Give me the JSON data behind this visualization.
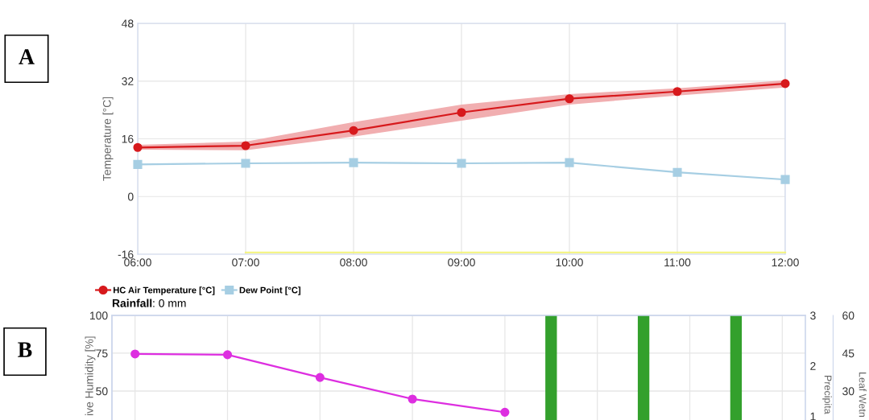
{
  "chart_data": [
    {
      "type": "line",
      "ylabel": "Temperature [°C]",
      "annotations": [
        "A"
      ],
      "x": [
        6,
        7,
        8,
        9,
        10,
        11,
        12
      ],
      "xlim": [
        6,
        12
      ],
      "xticks": [
        {
          "value": 6,
          "label": "06:00"
        },
        {
          "value": 7,
          "label": "07:00"
        },
        {
          "value": 8,
          "label": "08:00"
        },
        {
          "value": 9,
          "label": "09:00"
        },
        {
          "value": 10,
          "label": "10:00"
        },
        {
          "value": 11,
          "label": "11:00"
        },
        {
          "value": 12,
          "label": "12:00"
        }
      ],
      "ylim": [
        -16,
        48
      ],
      "yticks": [
        -16,
        0,
        16,
        32,
        48
      ],
      "grid": true,
      "legend": "bottom left",
      "series": [
        {
          "name": "HC Air Temperature [°C]",
          "color": "#d7191c",
          "marker": "circle",
          "values": [
            13.6,
            14.1,
            18.3,
            23.3,
            27.1,
            29.1,
            31.3
          ],
          "lower": [
            13.0,
            12.8,
            16.6,
            21.0,
            25.5,
            28.0,
            30.2
          ],
          "upper": [
            14.3,
            15.2,
            20.6,
            25.5,
            28.4,
            30.0,
            32.2
          ]
        },
        {
          "name": "Dew Point [°C]",
          "color": "#a6cee3",
          "marker": "square",
          "values": [
            8.9,
            9.2,
            9.4,
            9.2,
            9.4,
            6.7,
            4.7
          ]
        },
        {
          "color": "#f3f37a",
          "marker": "none",
          "values": [
            null,
            -15.5,
            -15.5,
            -15.5,
            -15.5,
            -15.5,
            -15.5
          ]
        }
      ]
    },
    {
      "type": "line",
      "title": "Rainfall: 0 mm",
      "ylabel": "ive Humidity [%]",
      "y2label": "Precipita",
      "y3label": "Leaf Wetn",
      "annotations": [
        "B"
      ],
      "categories": [
        null,
        null,
        null,
        null,
        null,
        null,
        null,
        null,
        null,
        null,
        null,
        null,
        null,
        null,
        null
      ],
      "ylim": [
        0,
        100
      ],
      "yticks": [
        50,
        75,
        100
      ],
      "y2lim": [
        0,
        3
      ],
      "y2ticks": [
        1,
        2,
        3
      ],
      "y3lim": [
        0,
        60
      ],
      "y3ticks": [
        30,
        45,
        60
      ],
      "grid": true,
      "series": [
        {
          "color": "#dd2ee0",
          "marker": "circle",
          "values": [
            74.5,
            null,
            74,
            null,
            59,
            null,
            44.7,
            null,
            36,
            null,
            null,
            null,
            null,
            null,
            null
          ]
        },
        {
          "type": "bar",
          "axis": "y2",
          "color": "#33a02c",
          "values": [
            null,
            null,
            null,
            null,
            null,
            null,
            null,
            null,
            null,
            3,
            null,
            3,
            null,
            3,
            null
          ]
        }
      ]
    }
  ]
}
